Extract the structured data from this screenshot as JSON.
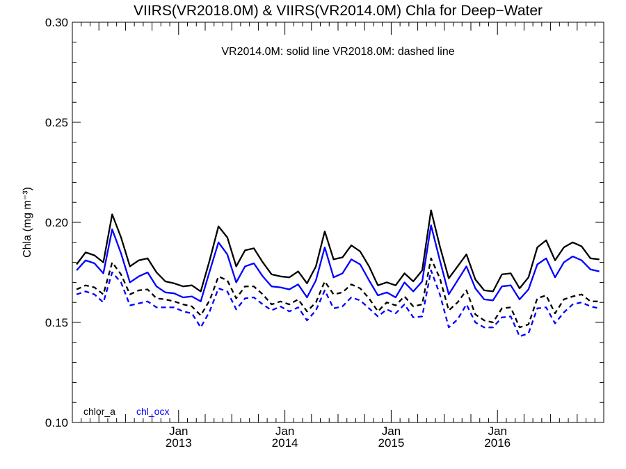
{
  "chart_data": {
    "type": "line",
    "title": "VIIRS(VR2018.0M) & VIIRS(VR2014.0M)  Chla for Deep−Water",
    "subtitle": "VR2014.0M: solid line   VR2018.0M: dashed line",
    "ylabel": "Chla (mg m⁻³)",
    "xlabel": "",
    "ylim": [
      0.1,
      0.3
    ],
    "yticks": [
      "0.10",
      "0.15",
      "0.20",
      "0.25",
      "0.30"
    ],
    "xticks": [
      {
        "x": 2013.0,
        "month": "Jan",
        "year": "2013"
      },
      {
        "x": 2014.0,
        "month": "Jan",
        "year": "2014"
      },
      {
        "x": 2015.0,
        "month": "Jan",
        "year": "2015"
      },
      {
        "x": 2016.0,
        "month": "Jan",
        "year": "2016"
      }
    ],
    "xlim": [
      2012.0,
      2017.0
    ],
    "grid": false,
    "legend": {
      "placement": "bottom-left",
      "items": [
        {
          "label": "chlor_a",
          "color": "#000000"
        },
        {
          "label": "chl_ocx",
          "color": "#0000ff"
        }
      ]
    },
    "x": [
      2012.04,
      2012.125,
      2012.208,
      2012.292,
      2012.375,
      2012.458,
      2012.542,
      2012.625,
      2012.708,
      2012.792,
      2012.875,
      2012.958,
      2013.042,
      2013.125,
      2013.208,
      2013.292,
      2013.375,
      2013.458,
      2013.542,
      2013.625,
      2013.708,
      2013.792,
      2013.875,
      2013.958,
      2014.042,
      2014.125,
      2014.208,
      2014.292,
      2014.375,
      2014.458,
      2014.542,
      2014.625,
      2014.708,
      2014.792,
      2014.875,
      2014.958,
      2015.042,
      2015.125,
      2015.208,
      2015.292,
      2015.375,
      2015.458,
      2015.542,
      2015.625,
      2015.708,
      2015.792,
      2015.875,
      2015.958,
      2016.042,
      2016.125,
      2016.208,
      2016.292,
      2016.375,
      2016.458,
      2016.542,
      2016.625,
      2016.708,
      2016.792,
      2016.875,
      2016.958
    ],
    "series": [
      {
        "key": "chlor_a_vr2014",
        "color": "#000000",
        "dash": false,
        "values": [
          0.179,
          0.185,
          0.1835,
          0.18,
          0.204,
          0.1925,
          0.178,
          0.181,
          0.182,
          0.175,
          0.1705,
          0.1695,
          0.168,
          0.1685,
          0.1655,
          0.181,
          0.198,
          0.1925,
          0.178,
          0.186,
          0.187,
          0.18,
          0.174,
          0.173,
          0.1725,
          0.1755,
          0.1695,
          0.178,
          0.1955,
          0.1815,
          0.1825,
          0.1885,
          0.1855,
          0.178,
          0.1685,
          0.17,
          0.1685,
          0.1745,
          0.1705,
          0.176,
          0.206,
          0.188,
          0.172,
          0.178,
          0.184,
          0.1715,
          0.166,
          0.1655,
          0.174,
          0.1745,
          0.167,
          0.1725,
          0.1875,
          0.191,
          0.181,
          0.1875,
          0.19,
          0.188,
          0.182,
          0.1815
        ]
      },
      {
        "key": "chl_ocx_vr2014",
        "color": "#0000ff",
        "dash": false,
        "values": [
          0.176,
          0.181,
          0.1795,
          0.1745,
          0.1965,
          0.1845,
          0.17,
          0.173,
          0.175,
          0.168,
          0.165,
          0.1645,
          0.1625,
          0.163,
          0.1605,
          0.1755,
          0.19,
          0.184,
          0.17,
          0.178,
          0.1795,
          0.173,
          0.168,
          0.1675,
          0.1665,
          0.169,
          0.1625,
          0.171,
          0.1875,
          0.1725,
          0.1745,
          0.1815,
          0.179,
          0.171,
          0.1635,
          0.165,
          0.1625,
          0.17,
          0.1655,
          0.1705,
          0.1985,
          0.181,
          0.164,
          0.171,
          0.178,
          0.167,
          0.1615,
          0.161,
          0.168,
          0.1685,
          0.1615,
          0.1665,
          0.179,
          0.182,
          0.1725,
          0.18,
          0.183,
          0.181,
          0.1765,
          0.1755
        ]
      },
      {
        "key": "chlor_a_vr2018",
        "color": "#000000",
        "dash": true,
        "values": [
          0.1665,
          0.1685,
          0.1675,
          0.164,
          0.18,
          0.174,
          0.164,
          0.166,
          0.1665,
          0.162,
          0.1615,
          0.1605,
          0.159,
          0.158,
          0.1535,
          0.161,
          0.173,
          0.171,
          0.162,
          0.168,
          0.168,
          0.164,
          0.159,
          0.1605,
          0.159,
          0.1615,
          0.1555,
          0.16,
          0.1705,
          0.164,
          0.165,
          0.169,
          0.167,
          0.162,
          0.1555,
          0.16,
          0.1585,
          0.163,
          0.158,
          0.159,
          0.182,
          0.172,
          0.156,
          0.16,
          0.166,
          0.154,
          0.151,
          0.15,
          0.157,
          0.1575,
          0.1475,
          0.149,
          0.162,
          0.1635,
          0.1545,
          0.1615,
          0.163,
          0.164,
          0.1605,
          0.1605
        ]
      },
      {
        "key": "chl_ocx_vr2018",
        "color": "#0000ff",
        "dash": true,
        "values": [
          0.164,
          0.1655,
          0.164,
          0.16,
          0.175,
          0.17,
          0.1585,
          0.1595,
          0.1605,
          0.1575,
          0.1575,
          0.1575,
          0.1555,
          0.1545,
          0.1475,
          0.1555,
          0.167,
          0.1655,
          0.1565,
          0.162,
          0.1625,
          0.159,
          0.156,
          0.158,
          0.1555,
          0.1575,
          0.151,
          0.156,
          0.166,
          0.157,
          0.158,
          0.1625,
          0.161,
          0.157,
          0.153,
          0.1565,
          0.1545,
          0.159,
          0.1525,
          0.153,
          0.176,
          0.164,
          0.1475,
          0.1515,
          0.159,
          0.15,
          0.1475,
          0.1475,
          0.1525,
          0.153,
          0.143,
          0.1445,
          0.157,
          0.1575,
          0.1495,
          0.155,
          0.159,
          0.16,
          0.158,
          0.157
        ]
      }
    ]
  }
}
